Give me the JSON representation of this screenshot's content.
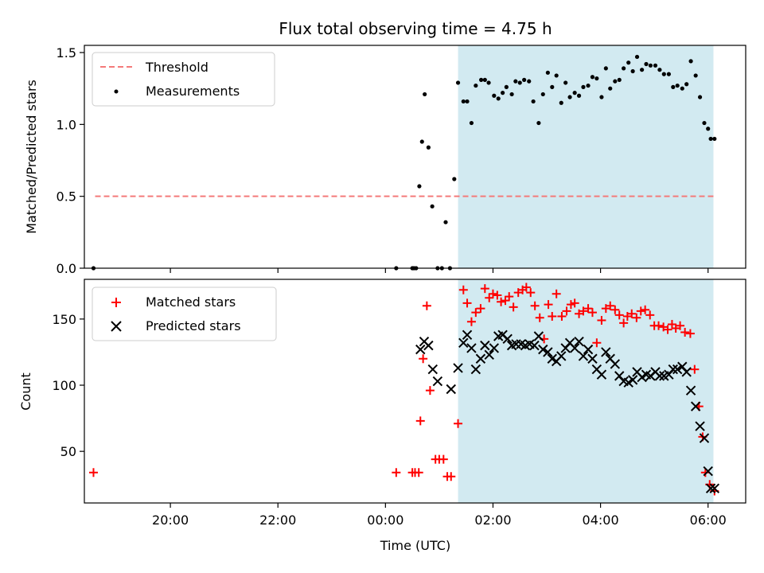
{
  "title": "Flux total observing time = 4.75 h",
  "colors": {
    "threshold": "#f47a7a",
    "measurement": "#000000",
    "matched": "#ff0000",
    "predicted": "#000000",
    "observing_span": "#add8e6"
  },
  "chart_data": [
    {
      "type": "scatter",
      "panel": "top",
      "ylabel": "Matched/Predicted stars",
      "xlabel": "",
      "xlim": [
        18.4,
        30.7
      ],
      "ylim": [
        0.0,
        1.55
      ],
      "yticks": [
        0.0,
        0.5,
        1.0,
        1.5
      ],
      "ytick_labels": [
        "0.0",
        "0.5",
        "1.0",
        "1.5"
      ],
      "xticks": [
        20,
        22,
        24,
        26,
        28,
        30
      ],
      "observing_span": [
        25.35,
        30.1
      ],
      "legend_position": "upper left",
      "threshold": {
        "name": "Threshold",
        "value": 0.5,
        "x": [
          18.6,
          30.1
        ]
      },
      "series": [
        {
          "name": "Measurements",
          "marker": "dot",
          "x": [
            18.57,
            24.2,
            24.5,
            24.53,
            24.57,
            24.63,
            24.68,
            24.73,
            24.8,
            24.87,
            24.97,
            25.05,
            25.12,
            25.2,
            25.28,
            25.35,
            25.45,
            25.52,
            25.6,
            25.68,
            25.78,
            25.85,
            25.92,
            26.02,
            26.1,
            26.18,
            26.25,
            26.35,
            26.42,
            26.5,
            26.58,
            26.67,
            26.75,
            26.85,
            26.93,
            27.02,
            27.1,
            27.18,
            27.27,
            27.35,
            27.43,
            27.52,
            27.6,
            27.68,
            27.77,
            27.85,
            27.93,
            28.02,
            28.1,
            28.18,
            28.27,
            28.35,
            28.43,
            28.52,
            28.6,
            28.68,
            28.77,
            28.85,
            28.93,
            29.02,
            29.1,
            29.18,
            29.27,
            29.35,
            29.43,
            29.52,
            29.6,
            29.68,
            29.77,
            29.85,
            29.93,
            30.0,
            30.05,
            30.12
          ],
          "y": [
            0.0,
            0.0,
            0.0,
            0.0,
            0.0,
            0.57,
            0.88,
            1.21,
            0.84,
            0.43,
            0.0,
            0.0,
            0.32,
            0.0,
            0.62,
            1.29,
            1.16,
            1.16,
            1.01,
            1.27,
            1.31,
            1.31,
            1.29,
            1.2,
            1.18,
            1.22,
            1.26,
            1.21,
            1.3,
            1.29,
            1.31,
            1.3,
            1.16,
            1.01,
            1.21,
            1.36,
            1.26,
            1.34,
            1.15,
            1.29,
            1.19,
            1.22,
            1.2,
            1.26,
            1.27,
            1.33,
            1.32,
            1.19,
            1.39,
            1.25,
            1.3,
            1.31,
            1.39,
            1.43,
            1.37,
            1.47,
            1.38,
            1.42,
            1.41,
            1.41,
            1.38,
            1.35,
            1.35,
            1.26,
            1.27,
            1.25,
            1.28,
            1.44,
            1.34,
            1.19,
            1.01,
            0.97,
            0.9,
            0.9
          ]
        }
      ]
    },
    {
      "type": "scatter",
      "panel": "bottom",
      "ylabel": "Count",
      "xlabel": "Time (UTC)",
      "xlim": [
        18.4,
        30.7
      ],
      "ylim": [
        11,
        180
      ],
      "yticks": [
        50,
        100,
        150
      ],
      "ytick_labels": [
        "50",
        "100",
        "150"
      ],
      "xticks": [
        20,
        22,
        24,
        26,
        28,
        30
      ],
      "xtick_labels": [
        "20:00",
        "22:00",
        "00:00",
        "02:00",
        "04:00",
        "06:00"
      ],
      "observing_span": [
        25.35,
        30.1
      ],
      "legend_position": "upper left",
      "series": [
        {
          "name": "Matched stars",
          "marker": "plus",
          "x": [
            18.57,
            24.2,
            24.5,
            24.55,
            24.62,
            24.65,
            24.7,
            24.77,
            24.83,
            24.93,
            25.0,
            25.08,
            25.15,
            25.22,
            25.35,
            25.45,
            25.52,
            25.6,
            25.68,
            25.77,
            25.85,
            25.93,
            26.0,
            26.08,
            26.15,
            26.23,
            26.3,
            26.38,
            26.47,
            26.55,
            26.62,
            26.7,
            26.78,
            26.87,
            26.95,
            27.03,
            27.1,
            27.18,
            27.28,
            27.37,
            27.45,
            27.52,
            27.6,
            27.68,
            27.77,
            27.85,
            27.93,
            28.02,
            28.1,
            28.18,
            28.27,
            28.35,
            28.43,
            28.5,
            28.58,
            28.67,
            28.75,
            28.83,
            28.92,
            29.0,
            29.08,
            29.17,
            29.25,
            29.33,
            29.4,
            29.48,
            29.57,
            29.67,
            29.75,
            29.83,
            29.9,
            29.95,
            30.03,
            30.12
          ],
          "y": [
            34,
            34,
            34,
            34,
            34,
            73,
            120,
            160,
            96,
            44,
            44,
            44,
            31,
            31,
            71,
            172,
            162,
            148,
            155,
            158,
            173,
            166,
            169,
            168,
            163,
            164,
            167,
            159,
            170,
            172,
            174,
            170,
            160,
            151,
            135,
            161,
            152,
            169,
            152,
            156,
            161,
            162,
            154,
            156,
            158,
            155,
            132,
            149,
            158,
            160,
            157,
            153,
            147,
            152,
            154,
            151,
            156,
            157,
            153,
            145,
            145,
            144,
            142,
            146,
            143,
            145,
            140,
            139,
            112,
            84,
            61,
            34,
            25,
            20
          ]
        },
        {
          "name": "Predicted stars",
          "marker": "x",
          "x": [
            24.65,
            24.72,
            24.8,
            24.88,
            24.97,
            25.22,
            25.35,
            25.45,
            25.52,
            25.6,
            25.68,
            25.77,
            25.85,
            25.93,
            26.02,
            26.1,
            26.18,
            26.27,
            26.35,
            26.43,
            26.52,
            26.6,
            26.68,
            26.77,
            26.85,
            26.93,
            27.02,
            27.1,
            27.18,
            27.27,
            27.35,
            27.43,
            27.52,
            27.6,
            27.68,
            27.77,
            27.85,
            27.93,
            28.02,
            28.1,
            28.18,
            28.27,
            28.35,
            28.43,
            28.52,
            28.6,
            28.68,
            28.77,
            28.85,
            28.93,
            29.02,
            29.1,
            29.18,
            29.27,
            29.35,
            29.43,
            29.52,
            29.6,
            29.68,
            29.77,
            29.85,
            29.93,
            30.0,
            30.05,
            30.12
          ],
          "y": [
            127,
            133,
            130,
            112,
            103,
            97,
            113,
            132,
            138,
            128,
            112,
            120,
            130,
            123,
            128,
            137,
            138,
            135,
            130,
            131,
            131,
            130,
            131,
            130,
            137,
            127,
            125,
            120,
            118,
            122,
            128,
            132,
            128,
            133,
            122,
            127,
            120,
            112,
            108,
            125,
            120,
            116,
            107,
            103,
            102,
            104,
            110,
            106,
            108,
            107,
            110,
            107,
            107,
            108,
            112,
            112,
            114,
            110,
            96,
            84,
            69,
            60,
            35,
            22,
            22
          ]
        }
      ]
    }
  ]
}
